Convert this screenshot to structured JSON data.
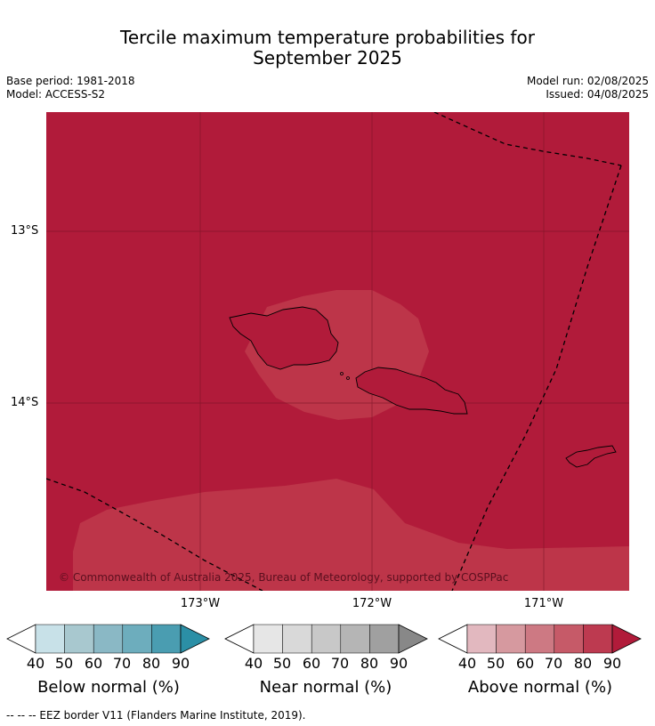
{
  "title_line1": "Tercile maximum temperature probabilities for",
  "title_line2": "September 2025",
  "base_period": "Base period: 1981-2018",
  "model": "Model: ACCESS-S2",
  "model_run": "Model run: 02/08/2025",
  "issued": "Issued: 04/08/2025",
  "copyright": "© Commonwealth of Australia 2025, Bureau of Meteorology, supported by COSPPac",
  "lat_labels": [
    "13°S",
    "14°S"
  ],
  "lon_labels": [
    "173°W",
    "172°W",
    "171°W"
  ],
  "colorbars": [
    {
      "label": "Below normal (%)",
      "ticks": [
        "40",
        "50",
        "60",
        "70",
        "80",
        "90"
      ],
      "colors": [
        "#ffffff",
        "#c8e1e8",
        "#a8c8cf",
        "#8ab8c5",
        "#6dadbd",
        "#4a9db1",
        "#2b8fa6"
      ]
    },
    {
      "label": "Near normal (%)",
      "ticks": [
        "40",
        "50",
        "60",
        "70",
        "80",
        "90"
      ],
      "colors": [
        "#ffffff",
        "#e6e6e6",
        "#d9d9d9",
        "#c8c8c8",
        "#b5b5b5",
        "#a0a0a0",
        "#888888"
      ]
    },
    {
      "label": "Above normal (%)",
      "ticks": [
        "40",
        "50",
        "60",
        "70",
        "80",
        "90"
      ],
      "colors": [
        "#ffffff",
        "#e2b8bf",
        "#d6999f",
        "#cd7983",
        "#c65a68",
        "#bd3a50",
        "#b11b3a"
      ]
    }
  ],
  "footnote": "--  --  -- EEZ border V11 (Flanders Marine Institute, 2019).",
  "map_colors": {
    "dominant": "#b11b3a",
    "lighter": "#bd3549",
    "grid": "#7a1426"
  }
}
